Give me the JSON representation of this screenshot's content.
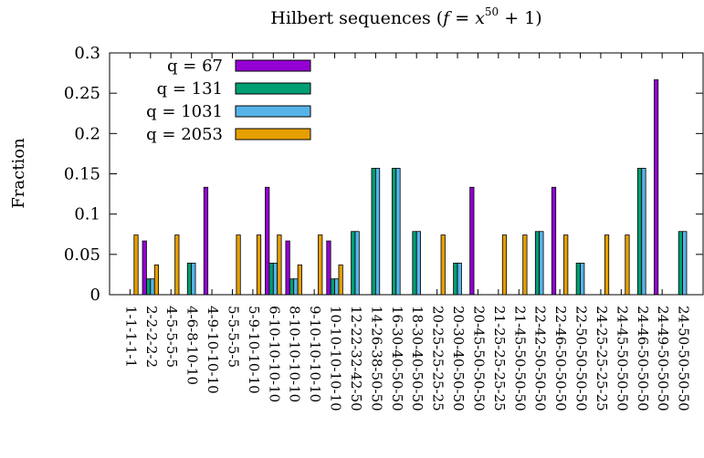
{
  "chart_data": {
    "type": "bar",
    "title": "Hilbert sequences (f = x^50 + 1)",
    "title_parts": {
      "prefix": "Hilbert sequences (",
      "f": "f",
      "eq": " = ",
      "x": "x",
      "exp": "50",
      "suffix": " + 1)"
    },
    "xlabel": "",
    "ylabel": "Fraction",
    "ylim": [
      0,
      0.3
    ],
    "yticks": [
      "0",
      "0.05",
      "0.1",
      "0.15",
      "0.2",
      "0.25",
      "0.3"
    ],
    "grid": false,
    "legend_position": "top-left",
    "categories": [
      "1-1-1-1-1",
      "2-2-2-2-2",
      "4-5-5-5-5",
      "4-6-8-10-10",
      "4-9-10-10-10",
      "5-5-5-5-5",
      "5-9-10-10-10",
      "6-10-10-10-10",
      "8-10-10-10-10",
      "9-10-10-10-10",
      "10-10-10-10-10",
      "12-22-32-42-50",
      "14-26-38-50-50",
      "16-30-40-50-50",
      "18-30-40-50-50",
      "20-25-25-25-25",
      "20-30-40-50-50",
      "20-45-50-50-50",
      "21-25-25-25-25",
      "21-45-50-50-50",
      "22-42-50-50-50",
      "22-46-50-50-50",
      "22-50-50-50-50",
      "24-25-25-25-25",
      "24-45-50-50-50",
      "24-46-50-50-50",
      "24-49-50-50-50",
      "24-50-50-50-50"
    ],
    "series": [
      {
        "name": "q = 67",
        "color": "#9400d3",
        "values": [
          0,
          0.0667,
          0,
          0,
          0.1333,
          0,
          0,
          0.1333,
          0.0667,
          0,
          0.0667,
          0,
          0,
          0,
          0,
          0,
          0,
          0.1333,
          0,
          0,
          0,
          0.1333,
          0,
          0,
          0,
          0,
          0.2667,
          0
        ]
      },
      {
        "name": "q = 131",
        "color": "#009e73",
        "values": [
          0,
          0.0196,
          0,
          0.0392,
          0,
          0,
          0,
          0.0392,
          0.0196,
          0,
          0.0196,
          0.0784,
          0.1569,
          0.1569,
          0.0784,
          0,
          0.0392,
          0,
          0,
          0,
          0.0784,
          0,
          0.0392,
          0,
          0,
          0.1569,
          0,
          0.0784
        ]
      },
      {
        "name": "q = 1031",
        "color": "#56b4e9",
        "values": [
          0,
          0.0196,
          0,
          0.0392,
          0,
          0,
          0,
          0.0392,
          0.0196,
          0,
          0.0196,
          0.0784,
          0.1569,
          0.1569,
          0.0784,
          0,
          0.0392,
          0,
          0,
          0,
          0.0784,
          0,
          0.0392,
          0,
          0,
          0.1569,
          0,
          0.0784
        ]
      },
      {
        "name": "q = 2053",
        "color": "#e69f00",
        "values": [
          0.0741,
          0.037,
          0.0741,
          0,
          0,
          0.0741,
          0.0741,
          0.0741,
          0.037,
          0.0741,
          0.037,
          0,
          0,
          0,
          0,
          0.0741,
          0,
          0,
          0.0741,
          0.0741,
          0,
          0.0741,
          0,
          0.0741,
          0.0741,
          0,
          0,
          0
        ]
      }
    ]
  }
}
